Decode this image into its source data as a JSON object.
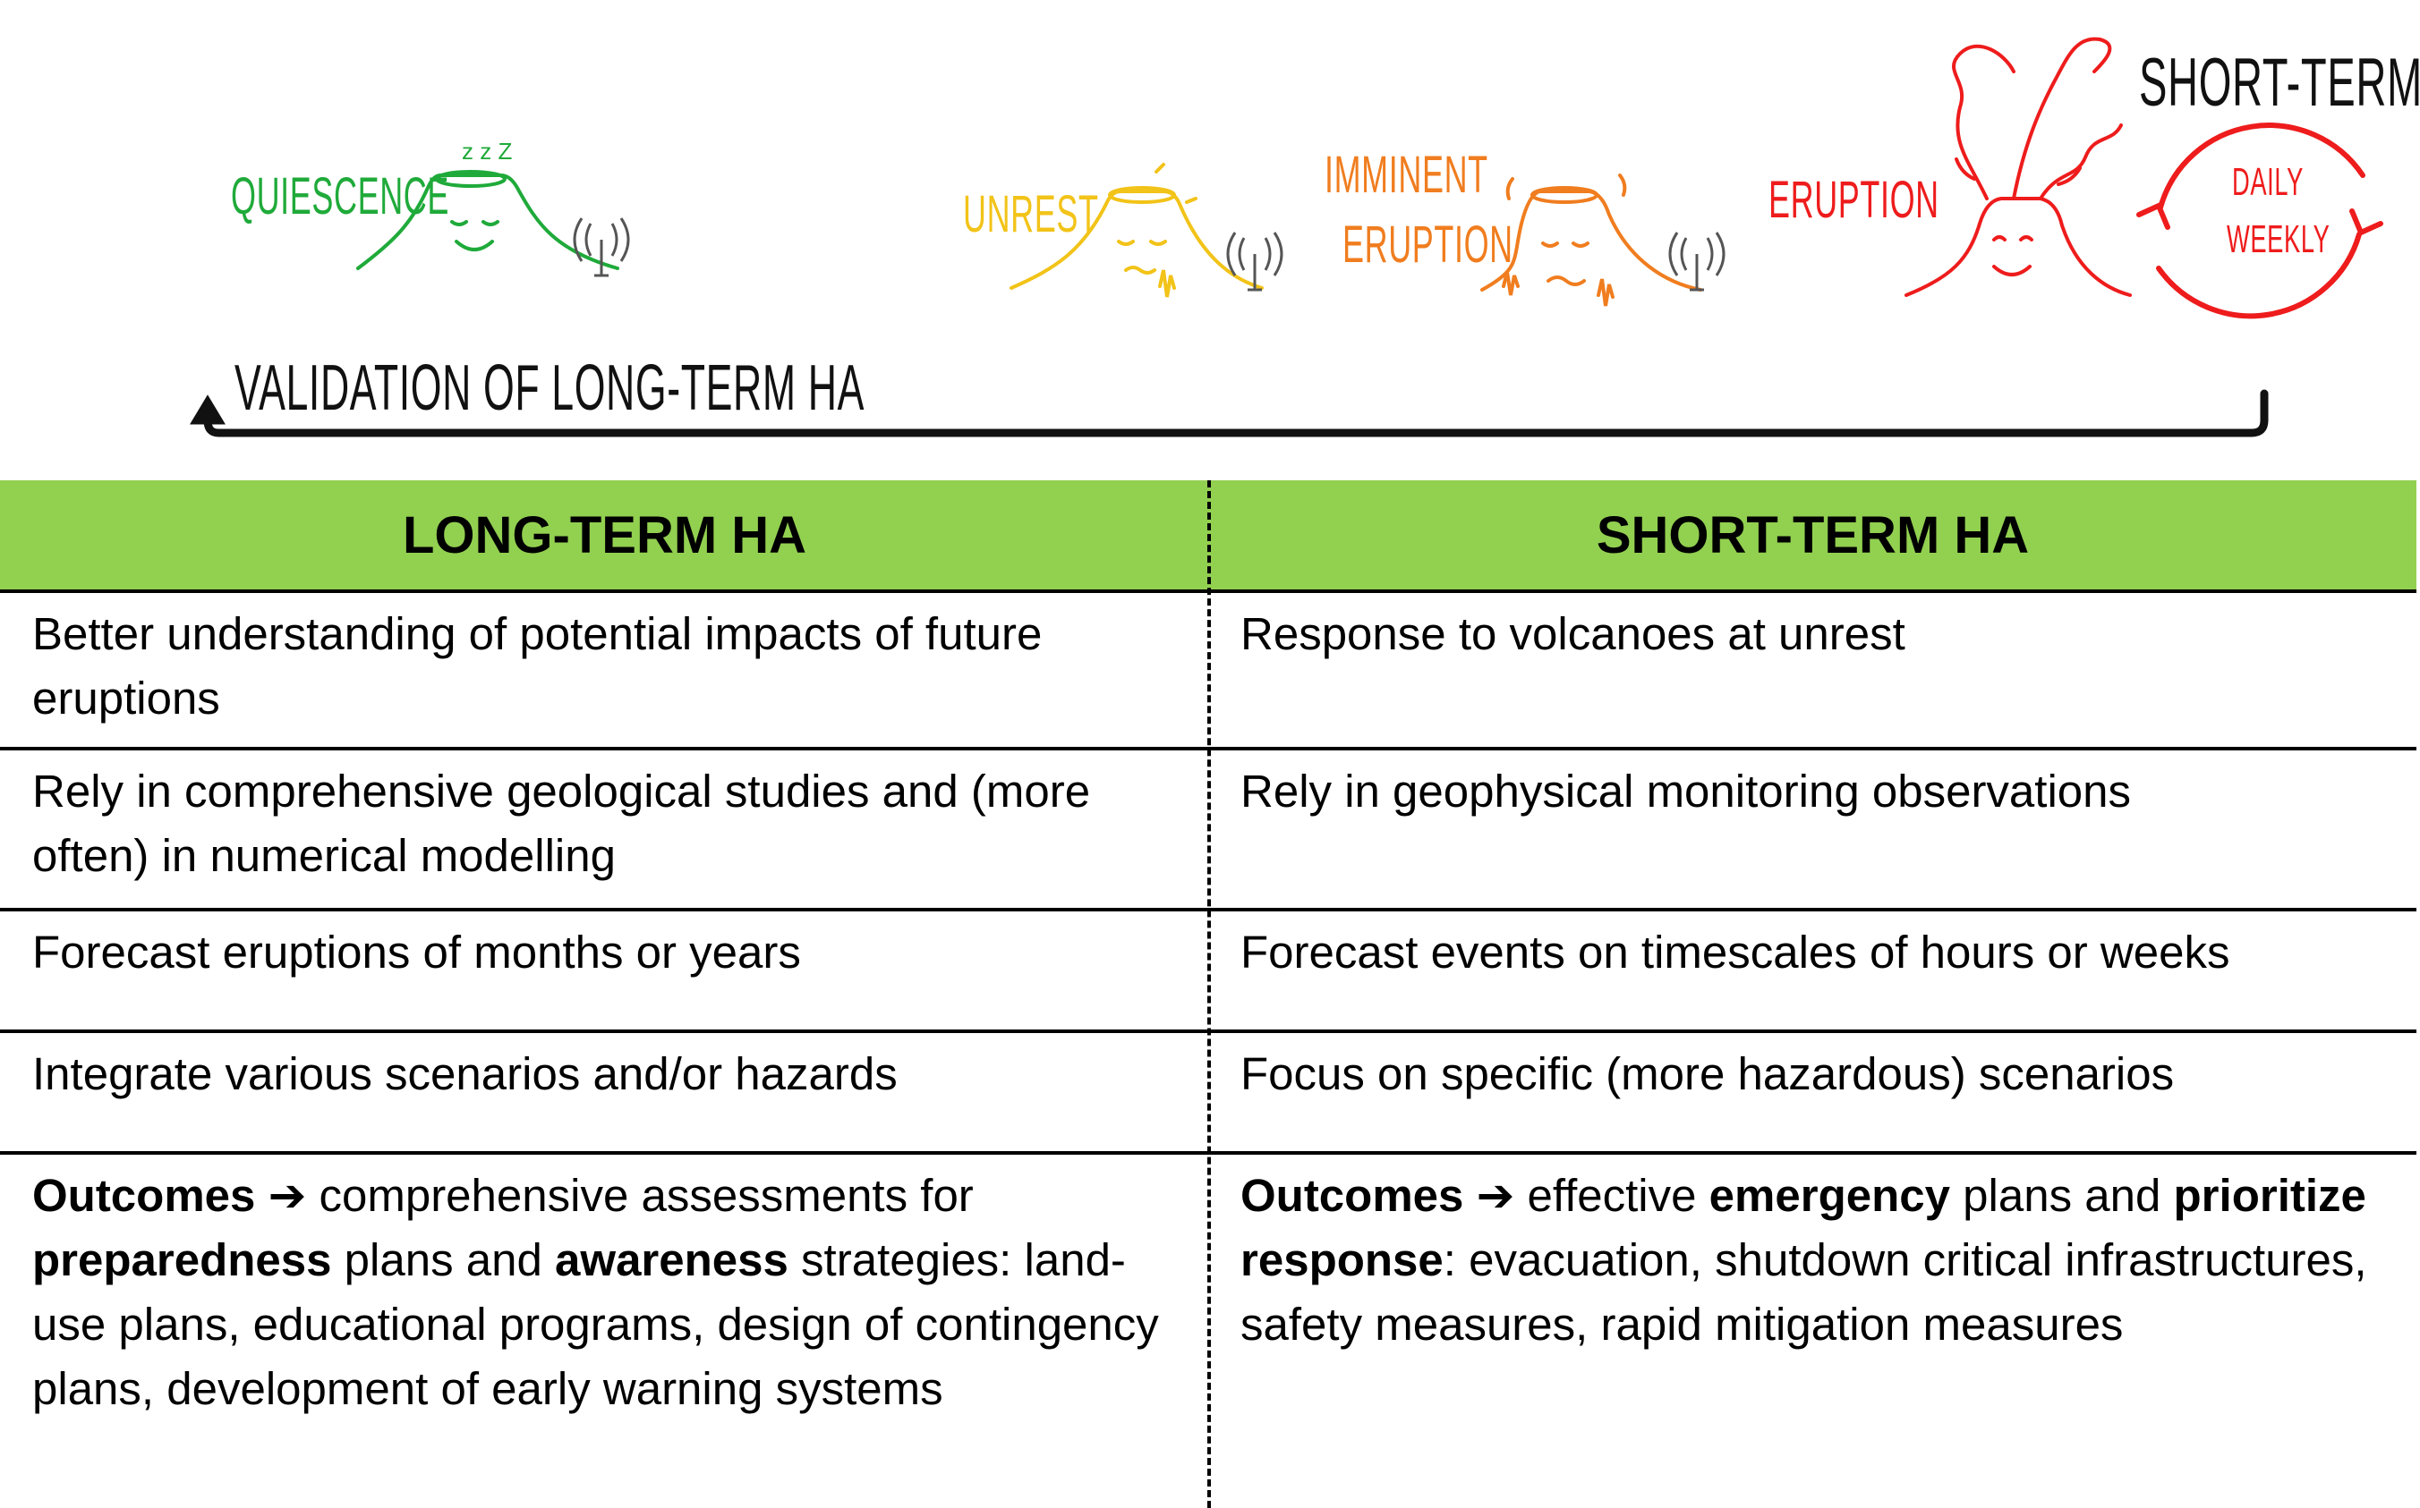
{
  "stages": {
    "quiescence": "QUIESCENCE",
    "unrest": "UNREST",
    "imminent_line1": "IMMINENT",
    "imminent_line2": "ERUPTION",
    "eruption": "ERUPTION",
    "short_term_title": "SHORT-TERM HA",
    "cycle_line1": "DAILY",
    "cycle_line2": "WEEKLY",
    "validation": "VALIDATION OF LONG-TERM HA",
    "sleep_marks": "z z Z"
  },
  "colors": {
    "quiescence": "#1faa3a",
    "unrest": "#f2c318",
    "imminent": "#f07d1f",
    "eruption": "#ee1c1c",
    "header_bg": "#92d050"
  },
  "icons": [
    "sleeping-volcano-icon",
    "unrest-volcano-icon",
    "imminent-volcano-icon",
    "erupting-volcano-icon",
    "antenna-icon",
    "cycle-arrows-icon",
    "return-arrow-icon"
  ],
  "table": {
    "headers": [
      "LONG-TERM HA",
      "SHORT-TERM HA"
    ],
    "rows": [
      {
        "left": "Better understanding of potential impacts of future eruptions",
        "right": "Response to volcanoes at unrest"
      },
      {
        "left": "Rely in comprehensive geological studies and (more often) in numerical modelling",
        "right": "Rely in geophysical monitoring observations"
      },
      {
        "left": "Forecast eruptions of months or years",
        "right": "Forecast events on timescales of hours or weeks"
      },
      {
        "left": "Integrate various scenarios and/or hazards",
        "right": "Focus on specific (more hazardous) scenarios"
      }
    ],
    "outcomes_left": {
      "label": "Outcomes",
      "arrow": "➔",
      "t1": " comprehensive assessments for ",
      "b1": "preparedness",
      "t2": " plans and ",
      "b2": "awareness",
      "t3": " strategies: land-use plans, educational programs, design of contingency plans, development of early warning systems"
    },
    "outcomes_right": {
      "label": "Outcomes",
      "arrow": "➔",
      "t1": " effective ",
      "b1": "emergency",
      "t2": " plans and ",
      "b2": "prioritize response",
      "t3": ": evacuation, shutdown critical infrastructures, safety measures, rapid mitigation measures"
    }
  }
}
